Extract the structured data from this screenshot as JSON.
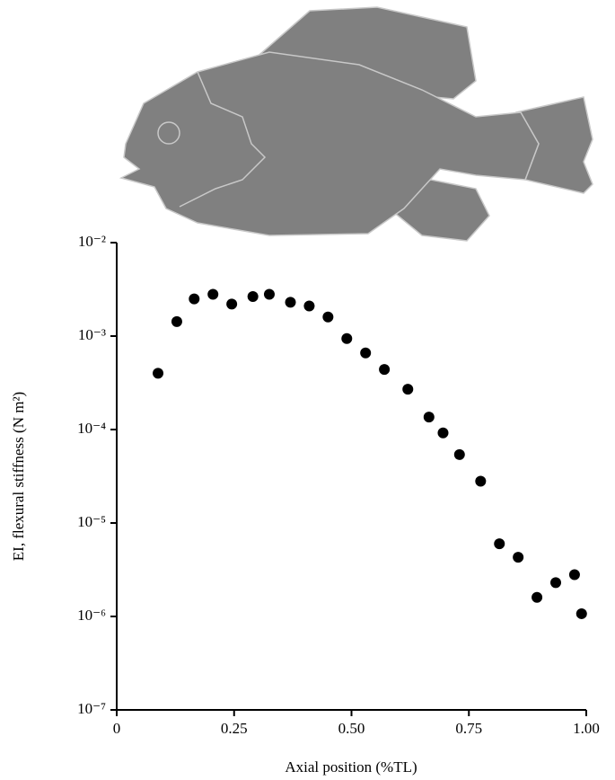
{
  "chart_data": {
    "type": "scatter",
    "xlabel": "Axial position (%TL)",
    "ylabel": "EI, flexural stiffness (N m²)",
    "x": [
      0.088,
      0.128,
      0.165,
      0.205,
      0.245,
      0.29,
      0.325,
      0.37,
      0.41,
      0.45,
      0.49,
      0.53,
      0.57,
      0.62,
      0.665,
      0.695,
      0.73,
      0.775,
      0.815,
      0.855,
      0.895,
      0.935,
      0.975,
      0.99
    ],
    "values": [
      0.0004,
      0.00143,
      0.0025,
      0.0028,
      0.0022,
      0.00265,
      0.0028,
      0.0023,
      0.0021,
      0.0016,
      0.00094,
      0.00066,
      0.00044,
      0.00027,
      0.000136,
      9.2e-05,
      5.4e-05,
      2.8e-05,
      6e-06,
      4.3e-06,
      1.6e-06,
      2.3e-06,
      2.8e-06,
      1.07e-06
    ],
    "color": "#000000",
    "log_y": true,
    "xlim": [
      0,
      1
    ],
    "ylim": [
      1e-07,
      0.01
    ],
    "xticks": [
      0,
      0.25,
      {
        "value": 0.5,
        "label": "0.50"
      },
      0.75,
      {
        "value": 1,
        "label": "1.00"
      }
    ],
    "yticks": [
      {
        "value": 1e-07,
        "label": "10⁻⁷"
      },
      {
        "value": 1e-06,
        "label": "10⁻⁶"
      },
      {
        "value": 1e-05,
        "label": "10⁻⁵"
      },
      {
        "value": 0.0001,
        "label": "10⁻⁴"
      },
      {
        "value": 0.001,
        "label": "10⁻³"
      },
      {
        "value": 0.01,
        "label": "10⁻²"
      }
    ]
  }
}
